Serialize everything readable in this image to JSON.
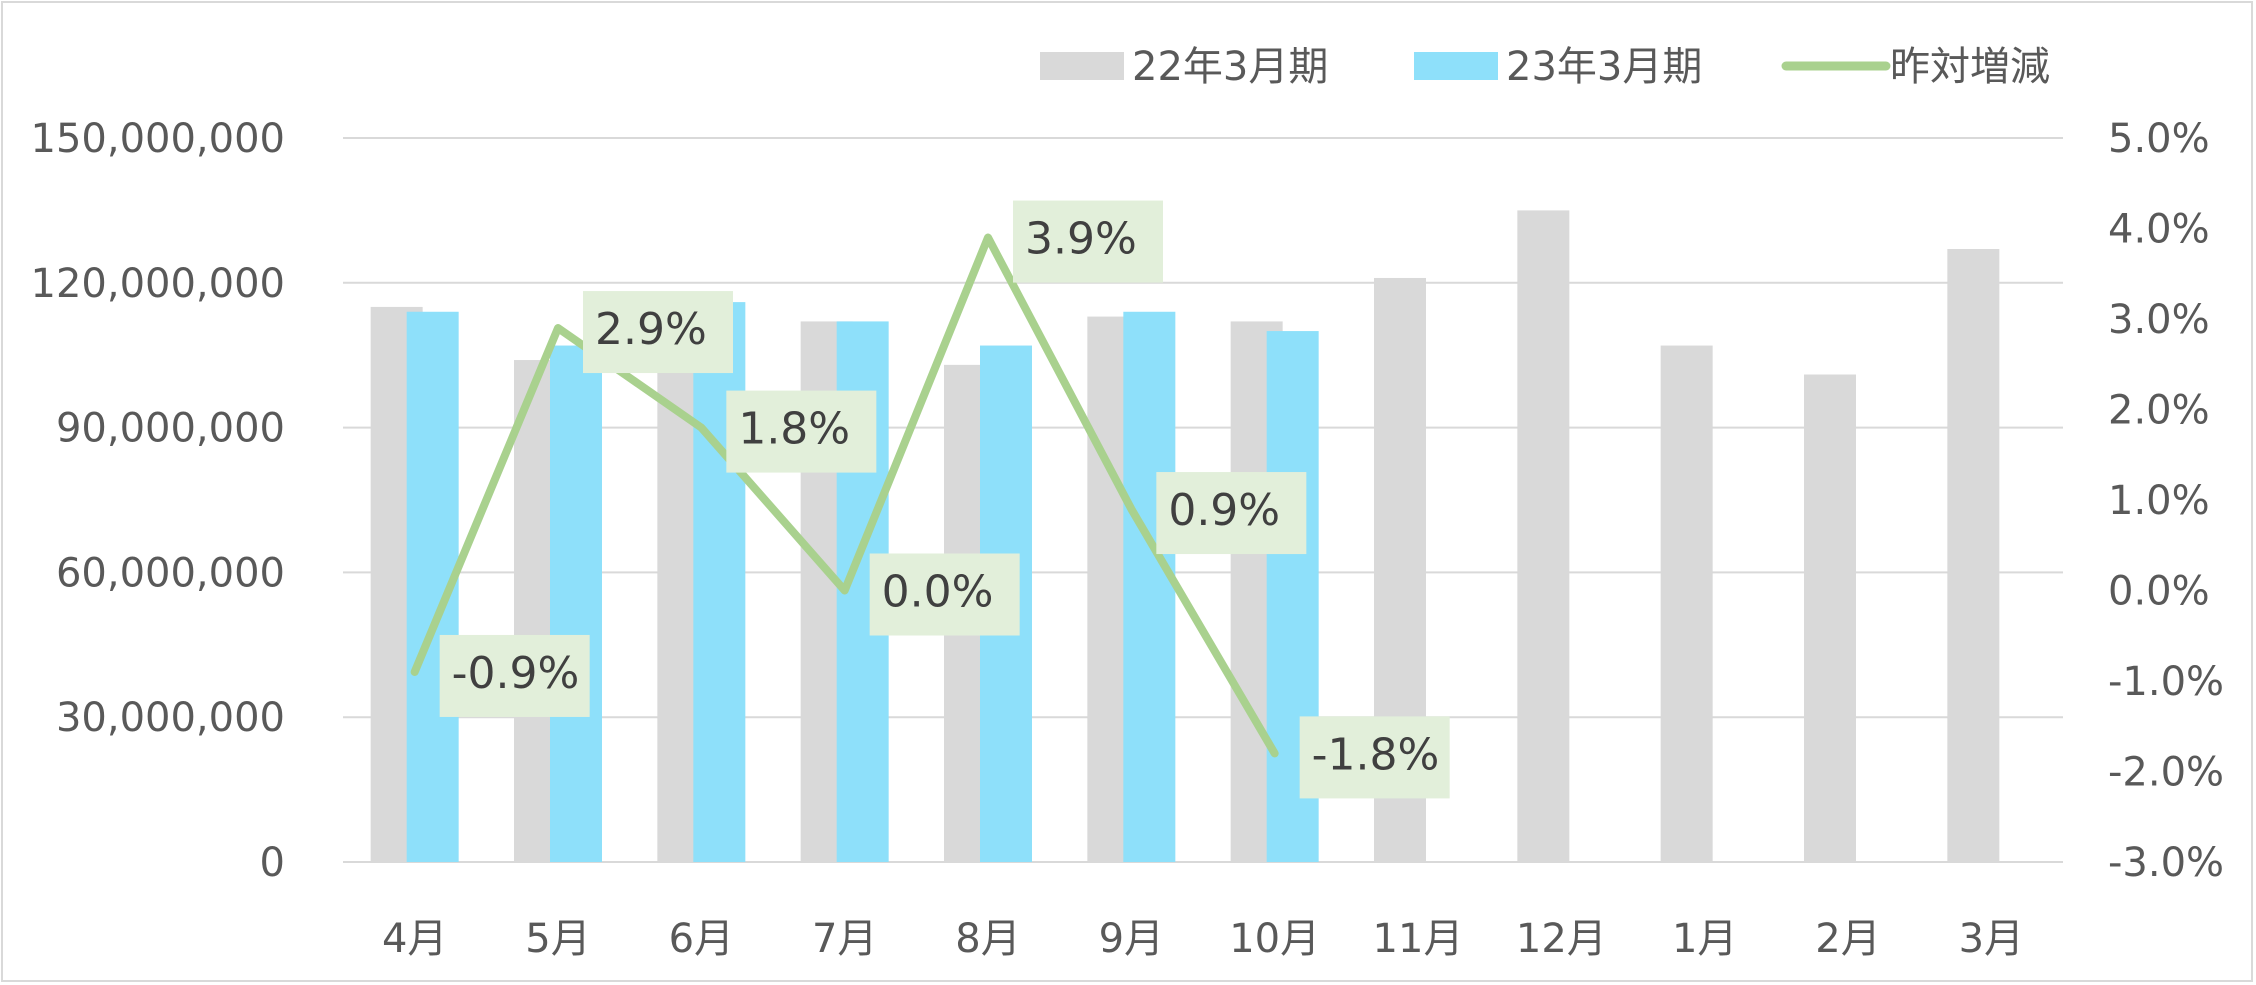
{
  "chart_data": {
    "type": "bar",
    "categories": [
      "4月",
      "5月",
      "6月",
      "7月",
      "8月",
      "9月",
      "10月",
      "11月",
      "12月",
      "1月",
      "2月",
      "3月"
    ],
    "series": [
      {
        "name": "22年3月期",
        "type": "bar",
        "axis": "left",
        "color": "#d9d9d9",
        "values": [
          115000000,
          104000000,
          114000000,
          112000000,
          103000000,
          113000000,
          112000000,
          121000000,
          135000000,
          107000000,
          101000000,
          127000000
        ]
      },
      {
        "name": "23年3月期",
        "type": "bar",
        "axis": "left",
        "color": "#8ee0fa",
        "values": [
          114000000,
          107000000,
          116000000,
          112000000,
          107000000,
          114000000,
          110000000,
          null,
          null,
          null,
          null,
          null
        ]
      },
      {
        "name": "昨対増減",
        "type": "line",
        "axis": "right",
        "color": "#a9d18e",
        "values": [
          -0.009,
          0.029,
          0.018,
          0.0,
          0.039,
          0.009,
          -0.018,
          null,
          null,
          null,
          null,
          null
        ],
        "data_labels": [
          "-0.9%",
          "2.9%",
          "1.8%",
          "0.0%",
          "3.9%",
          "0.9%",
          "-1.8%"
        ]
      }
    ],
    "y_left": {
      "ylim": [
        0,
        150000000
      ],
      "ticks": [
        "0",
        "30,000,000",
        "60,000,000",
        "90,000,000",
        "120,000,000",
        "150,000,000"
      ]
    },
    "y_right": {
      "ylim": [
        -0.03,
        0.05
      ],
      "ticks": [
        "-3.0%",
        "-2.0%",
        "-1.0%",
        "0.0%",
        "1.0%",
        "2.0%",
        "3.0%",
        "4.0%",
        "5.0%"
      ]
    },
    "title": "",
    "xlabel": "",
    "ylabel": "",
    "grid": true,
    "legend_position": "top-right",
    "gridline_color": "#d9d9d9",
    "label_box_color": "#e2efda"
  }
}
